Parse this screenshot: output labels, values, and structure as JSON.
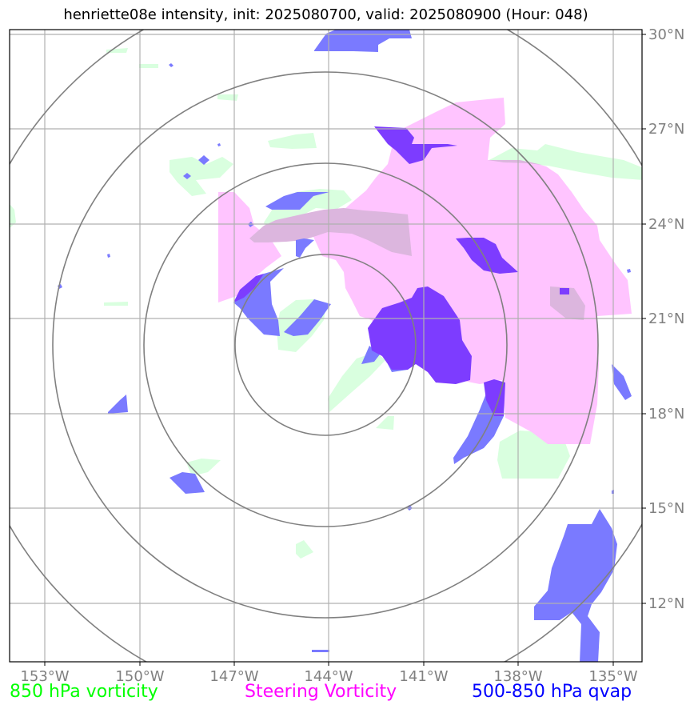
{
  "title": "henriette08e intensity, init: 2025080700, valid: 2025080900 (Hour: 048)",
  "lat_labels": [
    "30°N",
    "27°N",
    "24°N",
    "21°N",
    "18°N",
    "15°N",
    "12°N"
  ],
  "lon_labels": [
    "153°W",
    "150°W",
    "147°W",
    "144°W",
    "141°W",
    "138°W",
    "135°W"
  ],
  "legend": [
    {
      "label": "850 hPa vorticity",
      "color": "#00ff00"
    },
    {
      "label": "Steering Vorticity",
      "color": "#ff00ff"
    },
    {
      "label": "500-850 hPa qvap",
      "color": "#0000ff"
    }
  ],
  "colors": {
    "vorticity_850": "#d9ffdf",
    "steering_vorticity": "#ffc4ff",
    "qvap": "#7a7aff",
    "qvap_overlap": "#7d3cff",
    "range_rings": "#808080",
    "gridlines": "#b0b0b0"
  }
}
